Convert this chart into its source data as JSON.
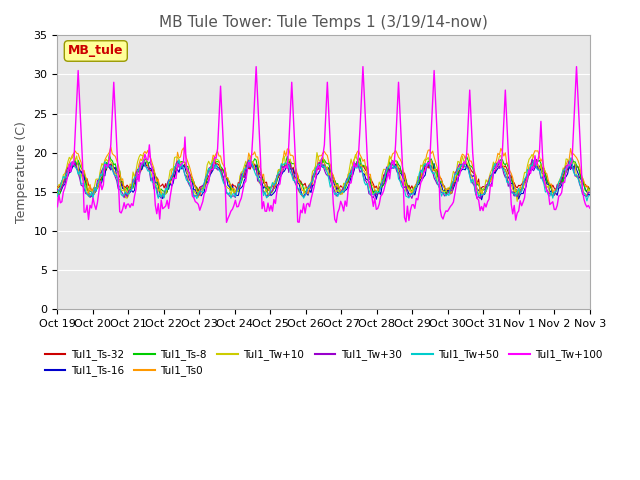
{
  "title": "MB Tule Tower: Tule Temps 1 (3/19/14-now)",
  "ylabel": "Temperature (C)",
  "xlabel": "",
  "ylim": [
    0,
    35
  ],
  "yticks": [
    0,
    5,
    10,
    15,
    20,
    25,
    30,
    35
  ],
  "xlim": [
    0,
    15
  ],
  "xtick_labels": [
    "Oct 19",
    "Oct 20",
    "Oct 21",
    "Oct 22",
    "Oct 23",
    "Oct 24",
    "Oct 25",
    "Oct 26",
    "Oct 27",
    "Oct 28",
    "Oct 29",
    "Oct 30",
    "Oct 31",
    "Nov 1",
    "Nov 2",
    "Nov 3"
  ],
  "shade_ymin": 15,
  "shade_ymax": 25,
  "legend_label": "MB_tule",
  "series_labels": [
    "Tul1_Ts-32",
    "Tul1_Ts-16",
    "Tul1_Ts-8",
    "Tul1_Ts0",
    "Tul1_Tw+10",
    "Tul1_Tw+30",
    "Tul1_Tw+50",
    "Tul1_Tw+100"
  ],
  "series_colors": [
    "#cc0000",
    "#0000cc",
    "#00cc00",
    "#ff9900",
    "#cccc00",
    "#9900cc",
    "#00cccc",
    "#ff00ff"
  ],
  "bg_color": "#ffffff",
  "plot_bg_color": "#e8e8e8",
  "title_fontsize": 11,
  "axis_fontsize": 9,
  "tick_fontsize": 8
}
